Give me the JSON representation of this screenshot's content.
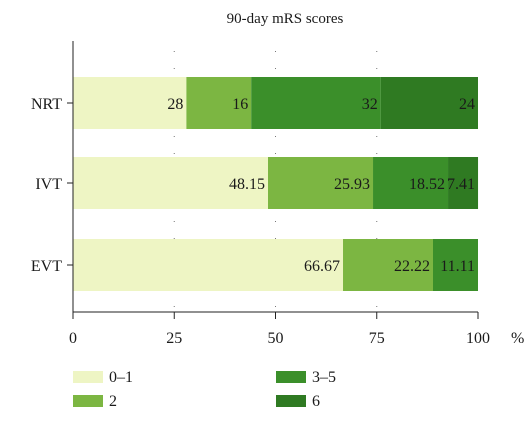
{
  "chart_data": {
    "type": "bar",
    "orientation": "horizontal",
    "stacked": true,
    "title": "90-day mRS scores",
    "categories": [
      "NRT",
      "IVT",
      "EVT"
    ],
    "series": [
      {
        "name": "0–1",
        "color": "#eef5c4",
        "values": [
          28,
          48.15,
          66.67
        ],
        "labels": [
          "28",
          "48.15",
          "66.67"
        ]
      },
      {
        "name": "2",
        "color": "#7cb642",
        "values": [
          16,
          25.93,
          22.22
        ],
        "labels": [
          "16",
          "25.93",
          "22.22"
        ]
      },
      {
        "name": "3–5",
        "color": "#3b8f2a",
        "values": [
          32,
          18.52,
          11.11
        ],
        "labels": [
          "32",
          "18.52",
          "11.11"
        ]
      },
      {
        "name": "6",
        "color": "#2f7a22",
        "values": [
          24,
          7.41,
          0
        ],
        "labels": [
          "24",
          "7.41",
          ""
        ]
      }
    ],
    "x_ticks": [
      "0",
      "25",
      "50",
      "75",
      "100"
    ],
    "x_unit": "%",
    "xlim": [
      0,
      100
    ],
    "grid": "dotted-vertical",
    "legend_position": "bottom"
  }
}
